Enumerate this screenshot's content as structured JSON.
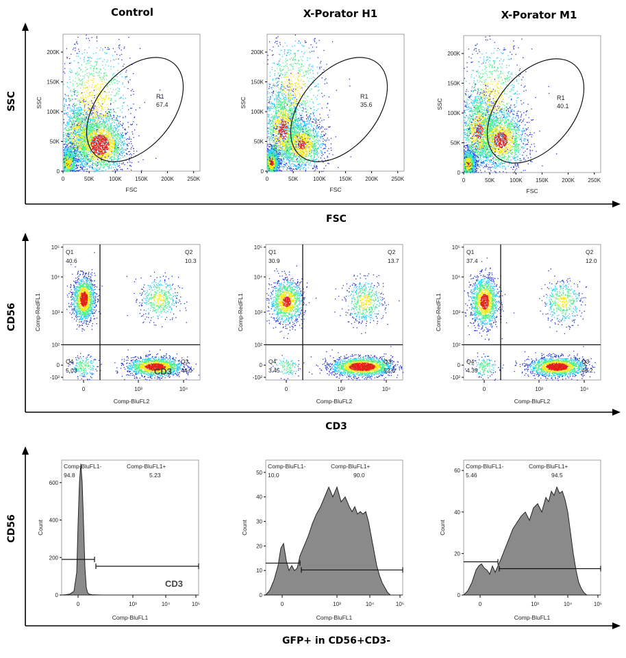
{
  "columns": [
    {
      "title": "Control"
    },
    {
      "title": "X-Porator H1"
    },
    {
      "title": "X-Porator M1"
    }
  ],
  "rows": [
    {
      "y_title": "SSC",
      "x_title": "FSC"
    },
    {
      "y_title": "CD56",
      "x_title": "CD3"
    },
    {
      "y_title": "CD56",
      "x_title": "GFP+ in CD56+CD3-"
    }
  ],
  "colors": {
    "density_low": "#1f2fd6",
    "density_mid": "#21c8ff",
    "density_high": "#f4e81a",
    "density_peak": "#e42018",
    "histogram_fill": "#8a8a8a",
    "axis": "#000000"
  },
  "chart_data": [
    {
      "type": "scatter",
      "panel": "Control FSC vs SSC",
      "xlabel": "FSC",
      "ylabel": "SSC",
      "x_ticks": [
        "0",
        "50K",
        "100K",
        "150K",
        "200K",
        "250K"
      ],
      "y_ticks": [
        "0",
        "50K",
        "100K",
        "150K",
        "200K"
      ],
      "xlim": [
        0,
        262144
      ],
      "ylim": [
        0,
        230000
      ],
      "gate": {
        "name": "R1",
        "percent": "67.4"
      },
      "clusters": [
        {
          "x": 10000,
          "y": 15000,
          "sx": 8000,
          "sy": 14000,
          "weight": 0.18
        },
        {
          "x": 30000,
          "y": 60000,
          "sx": 18000,
          "sy": 28000,
          "weight": 0.22
        },
        {
          "x": 70000,
          "y": 45000,
          "sx": 25000,
          "sy": 25000,
          "weight": 0.4
        },
        {
          "x": 60000,
          "y": 120000,
          "sx": 35000,
          "sy": 50000,
          "weight": 0.2
        }
      ]
    },
    {
      "type": "scatter",
      "panel": "X-Porator H1 FSC vs SSC",
      "xlabel": "FSC",
      "ylabel": "SSC",
      "x_ticks": [
        "0",
        "50K",
        "100K",
        "150K",
        "200K",
        "250K"
      ],
      "y_ticks": [
        "0",
        "50K",
        "100K",
        "150K",
        "200K"
      ],
      "xlim": [
        0,
        262144
      ],
      "ylim": [
        0,
        230000
      ],
      "gate": {
        "name": "R1",
        "percent": "35.6"
      },
      "clusters": [
        {
          "x": 8000,
          "y": 15000,
          "sx": 7000,
          "sy": 12000,
          "weight": 0.28
        },
        {
          "x": 30000,
          "y": 70000,
          "sx": 18000,
          "sy": 35000,
          "weight": 0.3
        },
        {
          "x": 65000,
          "y": 45000,
          "sx": 22000,
          "sy": 22000,
          "weight": 0.27
        },
        {
          "x": 50000,
          "y": 140000,
          "sx": 30000,
          "sy": 45000,
          "weight": 0.15
        }
      ]
    },
    {
      "type": "scatter",
      "panel": "X-Porator M1 FSC vs SSC",
      "xlabel": "FSC",
      "ylabel": "SSC",
      "x_ticks": [
        "0",
        "50K",
        "100K",
        "150K",
        "200K",
        "250K"
      ],
      "y_ticks": [
        "0",
        "50K",
        "100K",
        "150K",
        "200K"
      ],
      "xlim": [
        0,
        262144
      ],
      "ylim": [
        0,
        230000
      ],
      "gate": {
        "name": "R1",
        "percent": "40.1"
      },
      "clusters": [
        {
          "x": 8000,
          "y": 15000,
          "sx": 7000,
          "sy": 12000,
          "weight": 0.25
        },
        {
          "x": 30000,
          "y": 70000,
          "sx": 18000,
          "sy": 32000,
          "weight": 0.28
        },
        {
          "x": 70000,
          "y": 55000,
          "sx": 25000,
          "sy": 25000,
          "weight": 0.32
        },
        {
          "x": 55000,
          "y": 130000,
          "sx": 30000,
          "sy": 45000,
          "weight": 0.15
        }
      ]
    },
    {
      "type": "scatter",
      "panel": "Control CD3 vs CD56",
      "xlabel": "Comp-BluFL2",
      "ylabel": "Comp-RedFL1",
      "scale": "biexponential",
      "x_ticks": [
        "-10²",
        "0",
        "10³",
        "10⁴"
      ],
      "y_ticks": [
        "-10²",
        "0",
        "10²",
        "10³",
        "10⁴",
        "10⁵"
      ],
      "quadrants": [
        {
          "name": "Q1",
          "percent": "40.6"
        },
        {
          "name": "Q2",
          "percent": "10.3"
        },
        {
          "name": "Q3",
          "percent": "44.0"
        },
        {
          "name": "Q4",
          "percent": "5.03"
        }
      ],
      "overlay_label": "CD3",
      "clusters": [
        {
          "x": 0.15,
          "y": 0.6,
          "sx": 0.04,
          "sy": 0.08,
          "weight": 0.4
        },
        {
          "x": 0.7,
          "y": 0.6,
          "sx": 0.07,
          "sy": 0.08,
          "weight": 0.12
        },
        {
          "x": 0.67,
          "y": 0.1,
          "sx": 0.1,
          "sy": 0.035,
          "weight": 0.43
        },
        {
          "x": 0.15,
          "y": 0.1,
          "sx": 0.05,
          "sy": 0.04,
          "weight": 0.05
        }
      ]
    },
    {
      "type": "scatter",
      "panel": "X-Porator H1 CD3 vs CD56",
      "xlabel": "Comp-BluFL2",
      "ylabel": "Comp-RedFL1",
      "scale": "biexponential",
      "x_ticks": [
        "-10²",
        "0",
        "10³",
        "10⁴"
      ],
      "y_ticks": [
        "-10²",
        "0",
        "10²",
        "10³",
        "10⁴",
        "10⁵"
      ],
      "quadrants": [
        {
          "name": "Q1",
          "percent": "30.9"
        },
        {
          "name": "Q2",
          "percent": "13.7"
        },
        {
          "name": "Q3",
          "percent": "52.0"
        },
        {
          "name": "Q4",
          "percent": "3.45"
        }
      ],
      "clusters": [
        {
          "x": 0.15,
          "y": 0.58,
          "sx": 0.06,
          "sy": 0.08,
          "weight": 0.31
        },
        {
          "x": 0.72,
          "y": 0.58,
          "sx": 0.07,
          "sy": 0.08,
          "weight": 0.14
        },
        {
          "x": 0.7,
          "y": 0.1,
          "sx": 0.11,
          "sy": 0.035,
          "weight": 0.52
        },
        {
          "x": 0.15,
          "y": 0.1,
          "sx": 0.05,
          "sy": 0.04,
          "weight": 0.03
        }
      ]
    },
    {
      "type": "scatter",
      "panel": "X-Porator M1 CD3 vs CD56",
      "xlabel": "Comp-BluFL2",
      "ylabel": "Comp-RedFL1",
      "scale": "biexponential",
      "x_ticks": [
        "-10²",
        "0",
        "10³",
        "10⁴"
      ],
      "y_ticks": [
        "-10²",
        "0",
        "10²",
        "10³",
        "10⁴",
        "10⁵"
      ],
      "quadrants": [
        {
          "name": "Q1",
          "percent": "37.4"
        },
        {
          "name": "Q2",
          "percent": "12.0"
        },
        {
          "name": "Q3",
          "percent": "46.2"
        },
        {
          "name": "Q4",
          "percent": "4.39"
        }
      ],
      "clusters": [
        {
          "x": 0.15,
          "y": 0.58,
          "sx": 0.05,
          "sy": 0.09,
          "weight": 0.37
        },
        {
          "x": 0.72,
          "y": 0.58,
          "sx": 0.07,
          "sy": 0.08,
          "weight": 0.12
        },
        {
          "x": 0.68,
          "y": 0.1,
          "sx": 0.1,
          "sy": 0.035,
          "weight": 0.47
        },
        {
          "x": 0.15,
          "y": 0.1,
          "sx": 0.05,
          "sy": 0.04,
          "weight": 0.04
        }
      ]
    },
    {
      "type": "area",
      "panel": "Control GFP histogram",
      "xlabel": "Comp-BluFL1",
      "ylabel": "Count",
      "x_ticks": [
        "0",
        "10³",
        "10⁴",
        "10⁵"
      ],
      "y_ticks": [
        "0",
        "200",
        "400",
        "600"
      ],
      "ylim": [
        0,
        720
      ],
      "gates": [
        {
          "name": "Comp-BluFL1-",
          "percent": "94.8"
        },
        {
          "name": "Comp-BluFL1+",
          "percent": "5.23"
        }
      ],
      "gate_marker_y": 190,
      "overlay_label": "CD3",
      "x": [
        0,
        0.03,
        0.06,
        0.09,
        0.11,
        0.12,
        0.13,
        0.14,
        0.15,
        0.16,
        0.17,
        0.18,
        0.19,
        0.2,
        0.22,
        0.25,
        0.3,
        0.4,
        0.5,
        0.6,
        0.7,
        0.8,
        0.9,
        1
      ],
      "y": [
        0,
        2,
        5,
        20,
        120,
        380,
        600,
        700,
        600,
        380,
        150,
        40,
        12,
        5,
        2,
        1,
        0,
        0,
        0,
        0,
        0,
        0,
        0,
        0
      ]
    },
    {
      "type": "area",
      "panel": "X-Porator H1 GFP histogram",
      "xlabel": "Comp-BluFL1",
      "ylabel": "Count",
      "x_ticks": [
        "0",
        "10³",
        "10⁴",
        "10⁵"
      ],
      "y_ticks": [
        "0",
        "10",
        "20",
        "30",
        "40",
        "50"
      ],
      "ylim": [
        0,
        55
      ],
      "gates": [
        {
          "name": "Comp-BluFL1-",
          "percent": "10.0"
        },
        {
          "name": "Comp-BluFL1+",
          "percent": "90.0"
        }
      ],
      "gate_marker_y": 13,
      "x": [
        0,
        0.03,
        0.06,
        0.09,
        0.11,
        0.13,
        0.15,
        0.17,
        0.19,
        0.21,
        0.23,
        0.25,
        0.28,
        0.31,
        0.34,
        0.37,
        0.4,
        0.43,
        0.46,
        0.49,
        0.52,
        0.55,
        0.58,
        0.61,
        0.63,
        0.65,
        0.67,
        0.69,
        0.71,
        0.73,
        0.75,
        0.77,
        0.79,
        0.81,
        0.83,
        0.85,
        0.87,
        0.89,
        0.91,
        0.93,
        0.96,
        1
      ],
      "y": [
        0,
        2,
        6,
        12,
        19,
        21,
        14,
        10,
        12,
        10,
        11,
        16,
        20,
        24,
        29,
        33,
        36,
        40,
        44,
        40,
        44,
        38,
        40,
        36,
        34,
        36,
        33,
        34,
        33,
        34,
        30,
        24,
        18,
        12,
        8,
        5,
        3,
        1,
        0,
        0,
        0,
        0
      ]
    },
    {
      "type": "area",
      "panel": "X-Porator M1 GFP histogram",
      "xlabel": "Comp-BluFL1",
      "ylabel": "Count",
      "x_ticks": [
        "0",
        "10³",
        "10⁴",
        "10⁵"
      ],
      "y_ticks": [
        "0",
        "20",
        "40",
        "60"
      ],
      "ylim": [
        0,
        65
      ],
      "gates": [
        {
          "name": "Comp-BluFL1-",
          "percent": "5.46"
        },
        {
          "name": "Comp-BluFL1+",
          "percent": "94.5"
        }
      ],
      "gate_marker_y": 16,
      "x": [
        0,
        0.03,
        0.06,
        0.09,
        0.11,
        0.13,
        0.15,
        0.17,
        0.19,
        0.21,
        0.23,
        0.25,
        0.27,
        0.3,
        0.33,
        0.36,
        0.39,
        0.42,
        0.45,
        0.48,
        0.51,
        0.54,
        0.57,
        0.6,
        0.62,
        0.64,
        0.66,
        0.68,
        0.7,
        0.72,
        0.74,
        0.76,
        0.78,
        0.8,
        0.82,
        0.84,
        0.86,
        0.88,
        0.9,
        0.93,
        0.96,
        1
      ],
      "y": [
        0,
        2,
        6,
        12,
        14,
        15,
        13,
        12,
        10,
        14,
        11,
        14,
        17,
        22,
        27,
        32,
        35,
        38,
        40,
        36,
        42,
        44,
        40,
        47,
        45,
        50,
        48,
        52,
        49,
        50,
        46,
        40,
        30,
        20,
        12,
        6,
        3,
        1,
        0,
        0,
        0,
        0
      ]
    }
  ]
}
